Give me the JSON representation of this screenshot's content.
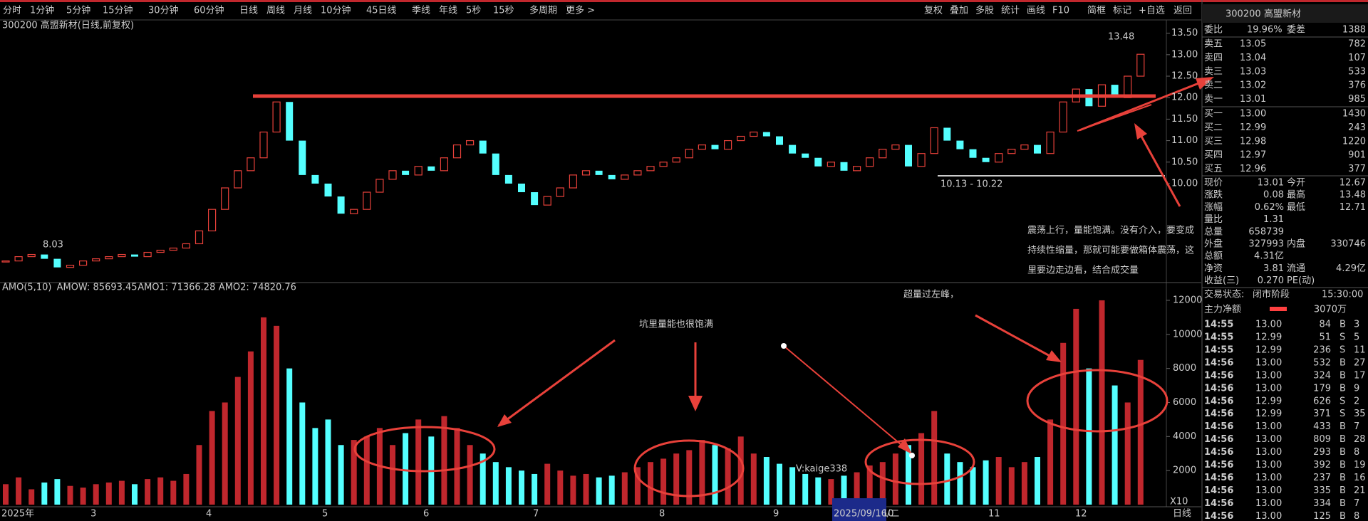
{
  "toolbar": {
    "left": [
      "分时",
      "1分钟",
      "5分钟",
      "15分钟",
      "30分钟",
      "60分钟",
      "日线",
      "周线",
      "月线",
      "10分钟",
      "45日线",
      "季线",
      "年线",
      "5秒",
      "15秒",
      "多周期",
      "更多 >"
    ],
    "right": [
      "复权",
      "叠加",
      "多股",
      "统计",
      "画线",
      "F10",
      "简框",
      "标记",
      "+自选",
      "返回"
    ]
  },
  "chart_title": "300200 高盟新材(日线,前复权)",
  "price_chart": {
    "type": "candlestick",
    "ylim": [
      7.73,
      13.61
    ],
    "yticks": [
      {
        "value": 13.5,
        "label": "13.50"
      },
      {
        "value": 13,
        "label": "13.00"
      },
      {
        "value": 12.5,
        "label": "12.50"
      },
      {
        "value": 12,
        "label": "12.00"
      },
      {
        "value": 11.5,
        "label": "11.50"
      },
      {
        "value": 11,
        "label": "11.00"
      },
      {
        "value": 10.5,
        "label": "10.50"
      },
      {
        "value": 10,
        "label": "10.00"
      }
    ],
    "closes": [
      8.2,
      8.3,
      8.35,
      8.25,
      8.05,
      8.1,
      8.2,
      8.25,
      8.3,
      8.35,
      8.3,
      8.4,
      8.45,
      8.5,
      8.6,
      8.9,
      9.4,
      9.9,
      10.3,
      10.6,
      11.2,
      11.9,
      11.0,
      10.2,
      10.0,
      9.7,
      9.3,
      9.4,
      9.8,
      10.1,
      10.3,
      10.2,
      10.4,
      10.3,
      10.6,
      10.9,
      11.0,
      10.7,
      10.2,
      10.0,
      9.8,
      9.5,
      9.7,
      9.9,
      10.2,
      10.3,
      10.2,
      10.1,
      10.2,
      10.3,
      10.4,
      10.5,
      10.6,
      10.8,
      10.9,
      10.8,
      11.0,
      11.1,
      11.2,
      11.1,
      10.9,
      10.7,
      10.6,
      10.4,
      10.5,
      10.3,
      10.4,
      10.6,
      10.8,
      10.9,
      10.4,
      10.7,
      11.3,
      11.0,
      10.8,
      10.6,
      10.5,
      10.7,
      10.8,
      10.9,
      10.7,
      11.2,
      11.9,
      12.2,
      11.8,
      12.3,
      12.0,
      12.5,
      13.01
    ],
    "high_label": "13.48",
    "low_label": "8.03",
    "range_label": "10.13 - 10.22"
  },
  "volume_chart": {
    "type": "bar",
    "header": [
      "AMO(5,10)",
      "AMOW: 85693.45",
      "AMO1: 71366.28",
      "AMO2: 74820.76"
    ],
    "ylim": [
      0,
      12500
    ],
    "yticks": [
      12000,
      10000,
      8000,
      6000,
      4000,
      2000
    ],
    "unit": "X10",
    "values": [
      1200,
      1600,
      900,
      1300,
      1500,
      1100,
      1000,
      1200,
      1300,
      1400,
      1200,
      1500,
      1600,
      1400,
      1800,
      3500,
      5500,
      6000,
      7500,
      9000,
      11000,
      10500,
      8000,
      6000,
      4500,
      5000,
      3500,
      3800,
      4000,
      4500,
      3500,
      4200,
      5000,
      4000,
      5200,
      4500,
      3500,
      3000,
      2500,
      2200,
      2000,
      1800,
      2400,
      2000,
      1700,
      1800,
      1600,
      1700,
      1900,
      2200,
      2500,
      2700,
      3000,
      3200,
      3800,
      3500,
      3300,
      4000,
      3000,
      2800,
      2400,
      2200,
      1800,
      1600,
      1500,
      1700,
      1900,
      2300,
      2500,
      3000,
      3500,
      4200,
      5500,
      3000,
      2500,
      2200,
      2600,
      2800,
      2200,
      2500,
      2800,
      5000,
      9500,
      11500,
      8000,
      12000,
      7000,
      6000,
      8500
    ]
  },
  "x_axis": {
    "months": [
      "2025年",
      "3",
      "4",
      "5",
      "6",
      "7",
      "8",
      "9",
      "10",
      "11",
      "12"
    ],
    "cursor_date": "2025/09/16/二",
    "period": "日线"
  },
  "annotations": {
    "main": [
      "震荡上行，量能饱满。没有介入，要变成",
      "持续性缩量，那就可能要做箱体震荡，这",
      "里要边走边看，结合成交量"
    ],
    "peak": "超量过左峰，",
    "pit": "坑里量能也很饱满",
    "watermark": "V:kaige338"
  },
  "quote_panel": {
    "code": "300200",
    "name": "高盟新材",
    "ratio_label": "委比",
    "ratio": "19.96%",
    "diff_label": "委差",
    "diff": "1388",
    "asks": [
      [
        "卖五",
        "13.05",
        "782"
      ],
      [
        "卖四",
        "13.04",
        "107"
      ],
      [
        "卖三",
        "13.03",
        "533"
      ],
      [
        "卖二",
        "13.02",
        "376"
      ],
      [
        "卖一",
        "13.01",
        "985"
      ]
    ],
    "bids": [
      [
        "买一",
        "13.00",
        "1430"
      ],
      [
        "买二",
        "12.99",
        "243"
      ],
      [
        "买三",
        "12.98",
        "1220"
      ],
      [
        "买四",
        "12.97",
        "901"
      ],
      [
        "买五",
        "12.96",
        "377"
      ]
    ],
    "stats": [
      [
        "现价",
        "13.01",
        "今开",
        "12.67"
      ],
      [
        "涨跌",
        "0.08",
        "最高",
        "13.48"
      ],
      [
        "涨幅",
        "0.62%",
        "最低",
        "12.71"
      ],
      [
        "量比",
        "1.31"
      ],
      [
        "总量",
        "658739"
      ],
      [
        "外盘",
        "327993",
        "内盘",
        "330746"
      ],
      [
        "总额",
        "4.31亿"
      ],
      [
        "净资",
        "3.81",
        "流通",
        "4.29亿"
      ],
      [
        "收益(三)",
        "0.270",
        "PE(动)"
      ]
    ],
    "status_label": "交易状态:",
    "status": "闭市阶段",
    "status_time": "15:30:00",
    "flow_label": "主力净额",
    "flow": "3070万",
    "ticks": [
      [
        "14:55",
        "13.00",
        "84",
        "B",
        "3"
      ],
      [
        "14:55",
        "12.99",
        "51",
        "S",
        "5"
      ],
      [
        "14:55",
        "12.99",
        "236",
        "S",
        "11"
      ],
      [
        "14:56",
        "13.00",
        "532",
        "B",
        "27"
      ],
      [
        "14:56",
        "13.00",
        "324",
        "B",
        "17"
      ],
      [
        "14:56",
        "13.00",
        "179",
        "B",
        "9"
      ],
      [
        "14:56",
        "12.99",
        "626",
        "S",
        "2"
      ],
      [
        "14:56",
        "12.99",
        "371",
        "S",
        "35"
      ],
      [
        "14:56",
        "13.00",
        "433",
        "B",
        "7"
      ],
      [
        "14:56",
        "13.00",
        "809",
        "B",
        "28"
      ],
      [
        "14:56",
        "13.00",
        "293",
        "B",
        "8"
      ],
      [
        "14:56",
        "13.00",
        "392",
        "B",
        "19"
      ],
      [
        "14:56",
        "13.00",
        "237",
        "B",
        "16"
      ],
      [
        "14:56",
        "13.00",
        "335",
        "B",
        "21"
      ],
      [
        "14:56",
        "13.00",
        "334",
        "B",
        "7"
      ],
      [
        "14:56",
        "13.00",
        "125",
        "B",
        "8"
      ]
    ]
  }
}
